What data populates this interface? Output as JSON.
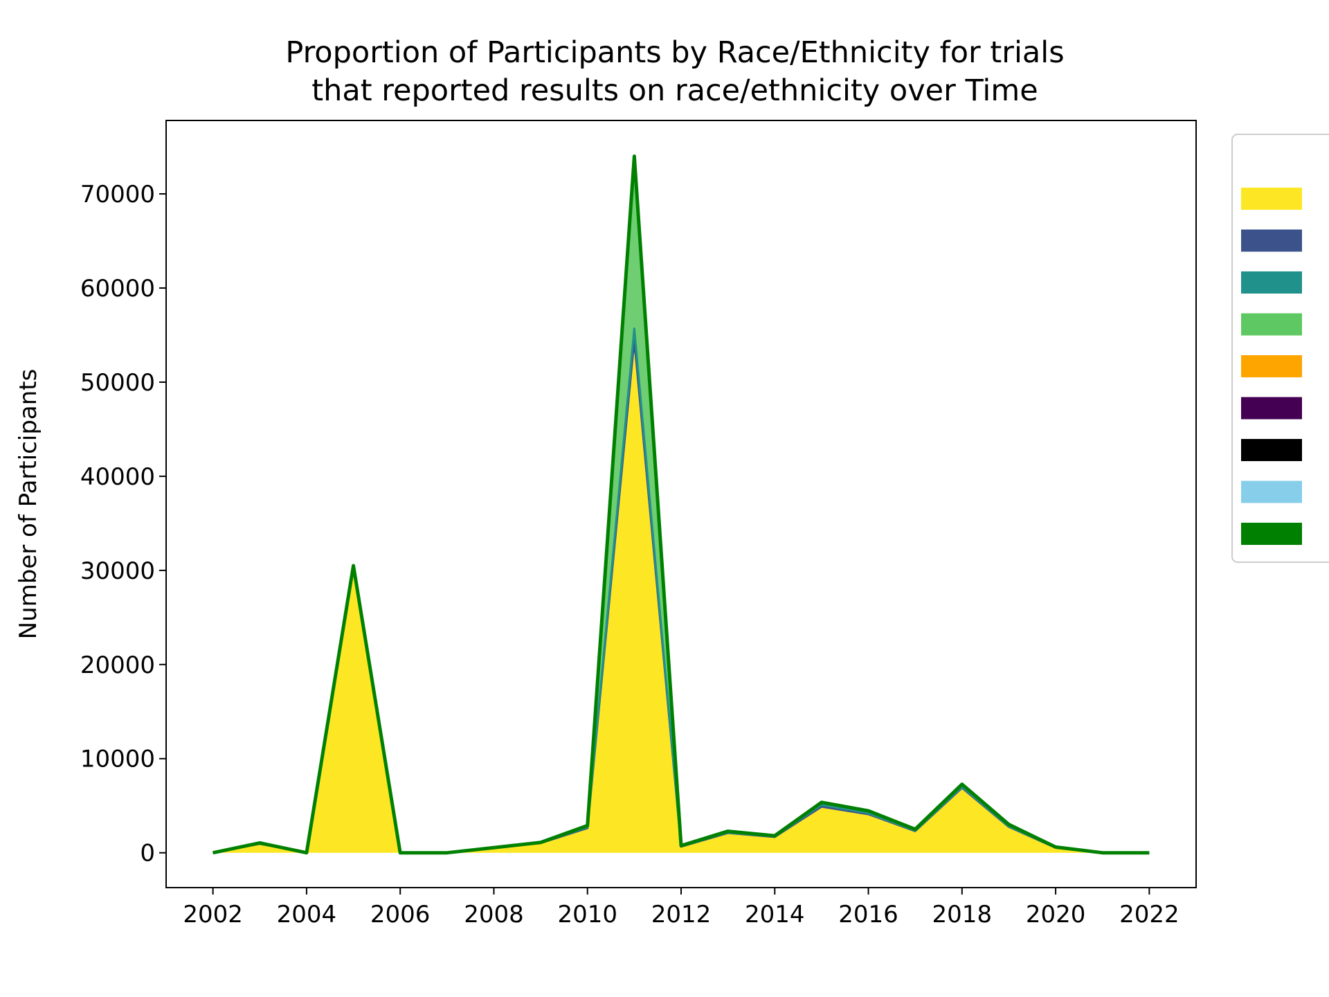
{
  "chart_data": {
    "type": "area",
    "stacked": true,
    "title_lines": [
      "Proportion of Participants by Race/Ethnicity for trials",
      "that reported results on race/ethnicity over Time"
    ],
    "xlabel": "",
    "ylabel": "Number of Participants",
    "xlim": [
      2001,
      2023
    ],
    "ylim": [
      -3700,
      77800
    ],
    "x_ticks": [
      2002,
      2004,
      2006,
      2008,
      2010,
      2012,
      2014,
      2016,
      2018,
      2020,
      2022
    ],
    "y_ticks": [
      0,
      10000,
      20000,
      30000,
      40000,
      50000,
      60000,
      70000
    ],
    "legend_position": "right (cropped)",
    "grid": false,
    "x": [
      2002,
      2003,
      2004,
      2005,
      2006,
      2007,
      2008,
      2009,
      2010,
      2011,
      2012,
      2013,
      2014,
      2015,
      2016,
      2017,
      2018,
      2019,
      2020,
      2021,
      2022
    ],
    "series": [
      {
        "color": "#fde725",
        "values": [
          0,
          800,
          0,
          30100,
          0,
          0,
          500,
          1000,
          2500,
          53000,
          600,
          2000,
          1600,
          4700,
          3900,
          2200,
          6700,
          2600,
          500,
          0,
          0
        ]
      },
      {
        "color": "#3b528b",
        "values": [
          0,
          150,
          0,
          100,
          0,
          0,
          20,
          30,
          120,
          1500,
          50,
          100,
          80,
          200,
          200,
          100,
          200,
          150,
          30,
          0,
          0
        ]
      },
      {
        "color": "#21918c",
        "values": [
          0,
          50,
          0,
          100,
          0,
          0,
          10,
          20,
          100,
          1200,
          30,
          50,
          40,
          200,
          100,
          50,
          100,
          50,
          20,
          0,
          0
        ]
      },
      {
        "color": "#5ec962",
        "values": [
          0,
          50,
          0,
          100,
          0,
          0,
          20,
          30,
          100,
          18000,
          50,
          80,
          60,
          200,
          200,
          100,
          200,
          150,
          30,
          0,
          0
        ]
      },
      {
        "color": "#ffa500",
        "values": [
          0,
          0,
          0,
          50,
          0,
          0,
          0,
          10,
          30,
          50,
          10,
          20,
          10,
          20,
          20,
          10,
          20,
          20,
          10,
          0,
          0
        ]
      },
      {
        "color": "#440154",
        "values": [
          0,
          0,
          0,
          20,
          0,
          0,
          0,
          5,
          10,
          30,
          5,
          10,
          5,
          10,
          10,
          10,
          10,
          10,
          5,
          0,
          0
        ]
      },
      {
        "color": "#000000",
        "values": [
          0,
          0,
          0,
          10,
          0,
          0,
          0,
          5,
          10,
          20,
          5,
          10,
          5,
          10,
          10,
          10,
          10,
          10,
          5,
          0,
          0
        ]
      },
      {
        "color": "#87ceeb",
        "values": [
          0,
          0,
          0,
          10,
          0,
          0,
          0,
          0,
          10,
          100,
          5,
          10,
          5,
          10,
          10,
          10,
          20,
          10,
          5,
          0,
          0
        ]
      },
      {
        "color": "#008000",
        "values": [
          0,
          0,
          0,
          10,
          0,
          0,
          0,
          0,
          10,
          100,
          5,
          10,
          5,
          10,
          10,
          10,
          20,
          10,
          5,
          0,
          0
        ]
      }
    ]
  }
}
